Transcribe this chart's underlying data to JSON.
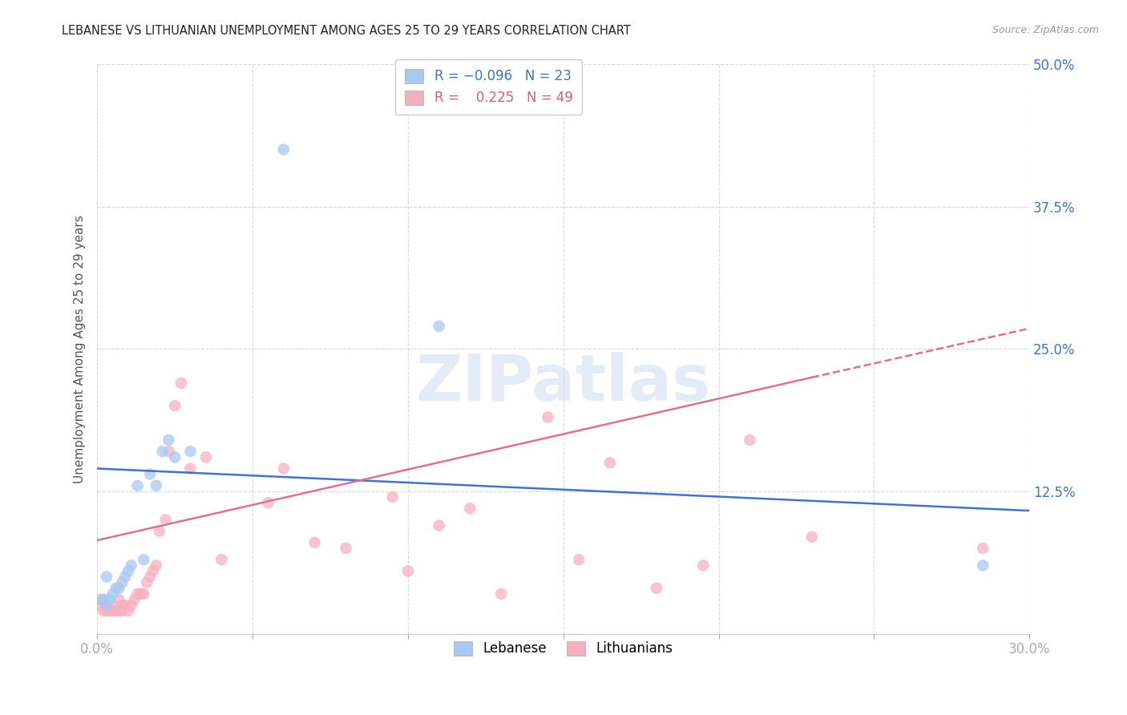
{
  "title": "LEBANESE VS LITHUANIAN UNEMPLOYMENT AMONG AGES 25 TO 29 YEARS CORRELATION CHART",
  "source": "Source: ZipAtlas.com",
  "ylabel": "Unemployment Among Ages 25 to 29 years",
  "xlim": [
    0.0,
    0.3
  ],
  "ylim": [
    0.0,
    0.5
  ],
  "xticks": [
    0.0,
    0.05,
    0.1,
    0.15,
    0.2,
    0.25,
    0.3
  ],
  "xtick_labels": [
    "0.0%",
    "",
    "",
    "",
    "",
    "",
    "30.0%"
  ],
  "yticks": [
    0.0,
    0.125,
    0.25,
    0.375,
    0.5
  ],
  "ytick_labels": [
    "",
    "12.5%",
    "25.0%",
    "37.5%",
    "50.0%"
  ],
  "background_color": "#ffffff",
  "grid_color": "#d8d8d8",
  "legend_R_blue": "-0.096",
  "legend_N_blue": "23",
  "legend_R_pink": "0.225",
  "legend_N_pink": "49",
  "blue_scatter_x": [
    0.001,
    0.002,
    0.003,
    0.003,
    0.004,
    0.005,
    0.006,
    0.007,
    0.008,
    0.009,
    0.01,
    0.011,
    0.013,
    0.015,
    0.017,
    0.019,
    0.021,
    0.023,
    0.025,
    0.03,
    0.06,
    0.11,
    0.285
  ],
  "blue_scatter_y": [
    0.03,
    0.03,
    0.025,
    0.05,
    0.03,
    0.035,
    0.04,
    0.04,
    0.045,
    0.05,
    0.055,
    0.06,
    0.13,
    0.065,
    0.14,
    0.13,
    0.16,
    0.17,
    0.155,
    0.16,
    0.425,
    0.27,
    0.06
  ],
  "pink_scatter_x": [
    0.001,
    0.002,
    0.002,
    0.003,
    0.003,
    0.004,
    0.005,
    0.005,
    0.006,
    0.007,
    0.007,
    0.008,
    0.008,
    0.009,
    0.01,
    0.011,
    0.012,
    0.013,
    0.014,
    0.015,
    0.016,
    0.017,
    0.018,
    0.019,
    0.02,
    0.022,
    0.023,
    0.025,
    0.027,
    0.03,
    0.035,
    0.04,
    0.055,
    0.06,
    0.07,
    0.08,
    0.095,
    0.1,
    0.11,
    0.12,
    0.13,
    0.145,
    0.155,
    0.165,
    0.18,
    0.195,
    0.21,
    0.23,
    0.285
  ],
  "pink_scatter_y": [
    0.025,
    0.02,
    0.03,
    0.02,
    0.025,
    0.02,
    0.02,
    0.025,
    0.02,
    0.02,
    0.03,
    0.02,
    0.025,
    0.025,
    0.02,
    0.025,
    0.03,
    0.035,
    0.035,
    0.035,
    0.045,
    0.05,
    0.055,
    0.06,
    0.09,
    0.1,
    0.16,
    0.2,
    0.22,
    0.145,
    0.155,
    0.065,
    0.115,
    0.145,
    0.08,
    0.075,
    0.12,
    0.055,
    0.095,
    0.11,
    0.035,
    0.19,
    0.065,
    0.15,
    0.04,
    0.06,
    0.17,
    0.085,
    0.075
  ],
  "blue_color": "#a8c8f0",
  "pink_color": "#f5b0c0",
  "blue_line_color": "#4472c4",
  "pink_line_color": "#e07090",
  "scatter_size": 110,
  "scatter_alpha": 0.75,
  "line_width": 1.8,
  "blue_line_x0": 0.0,
  "blue_line_y0": 0.145,
  "blue_line_x1": 0.3,
  "blue_line_y1": 0.108,
  "pink_line_solid_x0": 0.0,
  "pink_line_solid_y0": 0.082,
  "pink_line_solid_x1": 0.23,
  "pink_line_solid_y1": 0.225,
  "pink_line_dash_x0": 0.23,
  "pink_line_dash_y0": 0.225,
  "pink_line_dash_x1": 0.3,
  "pink_line_dash_y1": 0.268
}
